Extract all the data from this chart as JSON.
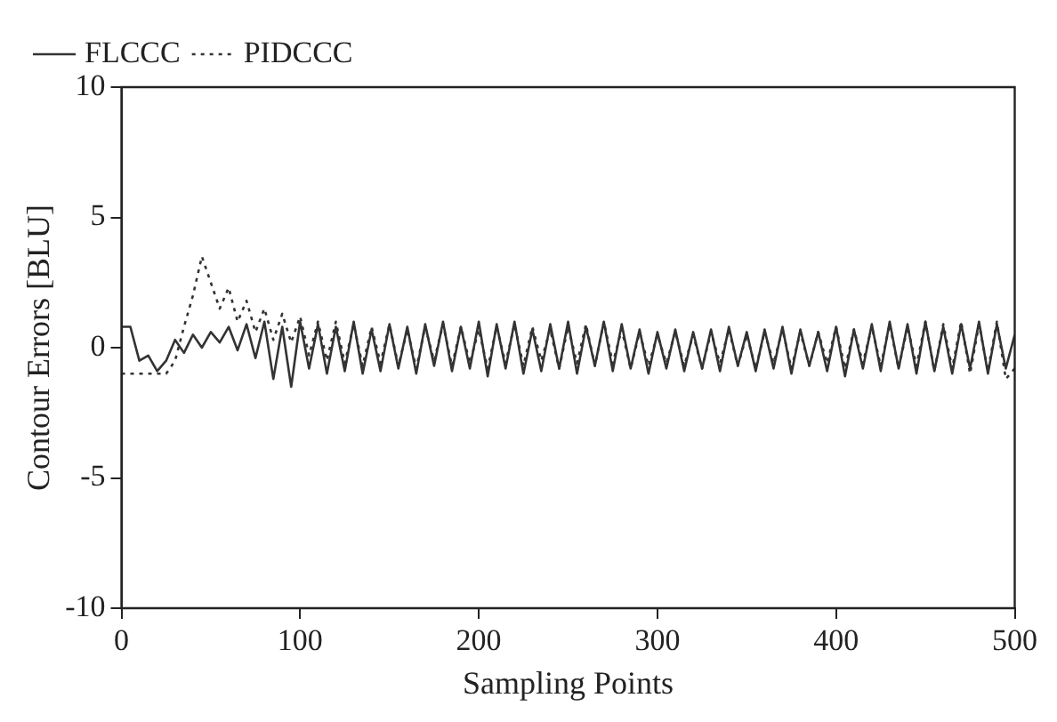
{
  "chart_data": {
    "type": "line",
    "xlabel": "Sampling Points",
    "ylabel": "Contour Errors [BLU]",
    "x": [
      0,
      5,
      10,
      15,
      20,
      25,
      30,
      35,
      40,
      45,
      50,
      55,
      60,
      65,
      70,
      75,
      80,
      85,
      90,
      95,
      100,
      105,
      110,
      115,
      120,
      125,
      130,
      135,
      140,
      145,
      150,
      155,
      160,
      165,
      170,
      175,
      180,
      185,
      190,
      195,
      200,
      205,
      210,
      215,
      220,
      225,
      230,
      235,
      240,
      245,
      250,
      255,
      260,
      265,
      270,
      275,
      280,
      285,
      290,
      295,
      300,
      305,
      310,
      315,
      320,
      325,
      330,
      335,
      340,
      345,
      350,
      355,
      360,
      365,
      370,
      375,
      380,
      385,
      390,
      395,
      400,
      405,
      410,
      415,
      420,
      425,
      430,
      435,
      440,
      445,
      450,
      455,
      460,
      465,
      470,
      475,
      480,
      485,
      490,
      495,
      500
    ],
    "series": [
      {
        "name": "FLCCC",
        "color": "#333333",
        "line_style": "solid",
        "values": [
          0.8,
          0.8,
          -0.5,
          -0.3,
          -0.9,
          -0.5,
          0.3,
          -0.2,
          0.5,
          0,
          0.6,
          0.2,
          0.8,
          -0.1,
          0.9,
          -0.4,
          1.0,
          -1.2,
          0.8,
          -1.5,
          1.0,
          -0.8,
          0.9,
          -1.0,
          0.8,
          -0.9,
          1.0,
          -1.0,
          0.7,
          -0.9,
          0.9,
          -0.8,
          0.8,
          -1.0,
          0.9,
          -0.7,
          1.0,
          -0.9,
          0.8,
          -0.8,
          1.0,
          -1.1,
          0.9,
          -0.8,
          1.0,
          -1.0,
          0.7,
          -0.9,
          0.9,
          -0.8,
          1.0,
          -1.0,
          0.8,
          -0.7,
          1.0,
          -0.9,
          0.9,
          -0.8,
          0.7,
          -1.0,
          0.6,
          -0.8,
          0.7,
          -0.9,
          0.6,
          -0.8,
          0.7,
          -0.9,
          0.8,
          -0.7,
          0.6,
          -0.9,
          0.7,
          -0.8,
          0.8,
          -1.0,
          0.7,
          -0.7,
          0.6,
          -0.9,
          0.8,
          -1.1,
          0.7,
          -0.8,
          0.9,
          -0.9,
          1.0,
          -0.8,
          0.9,
          -1.0,
          1.0,
          -0.9,
          0.8,
          -1.0,
          0.9,
          -0.8,
          1.0,
          -1.0,
          0.9,
          -0.8,
          0.5
        ]
      },
      {
        "name": "PIDCCC",
        "color": "#333333",
        "line_style": "dotted",
        "values": [
          -1,
          -1,
          -1,
          -1,
          -1,
          -1,
          -0.5,
          0.8,
          2.0,
          3.5,
          2.5,
          1.5,
          2.3,
          1.0,
          1.8,
          0.6,
          1.5,
          0.3,
          1.3,
          0.2,
          1.2,
          -0.3,
          1.0,
          -0.5,
          1.0,
          -0.6,
          0.9,
          -0.7,
          0.8,
          -0.6,
          0.9,
          -0.7,
          0.7,
          -0.8,
          0.8,
          -0.5,
          0.9,
          -0.7,
          0.8,
          -0.6,
          0.7,
          -0.8,
          0.8,
          -0.6,
          0.9,
          -0.7,
          0.8,
          -0.5,
          0.7,
          -0.8,
          0.8,
          -0.6,
          0.9,
          -0.7,
          1.0,
          -0.6,
          0.7,
          -0.8,
          0.6,
          -0.7,
          0.5,
          -0.6,
          0.6,
          -0.7,
          0.5,
          -0.8,
          0.6,
          -0.6,
          0.7,
          -0.7,
          0.5,
          -0.8,
          0.6,
          -0.6,
          0.7,
          -0.8,
          0.6,
          -0.7,
          0.6,
          -0.6,
          0.8,
          -0.8,
          0.7,
          -0.6,
          0.8,
          -0.7,
          0.9,
          -0.8,
          0.8,
          -0.7,
          1.0,
          -0.9,
          0.9,
          -0.8,
          1.0,
          -1.0,
          0.9,
          -0.9,
          1.0,
          -1.2,
          -0.8
        ]
      }
    ],
    "xlim": [
      0,
      500
    ],
    "xticks": [
      0,
      100,
      200,
      300,
      400,
      500
    ],
    "ylim": [
      -10,
      10
    ],
    "yticks": [
      -10,
      -5,
      0,
      5,
      10
    ],
    "grid": false,
    "legend": "top left",
    "marker": "none"
  }
}
